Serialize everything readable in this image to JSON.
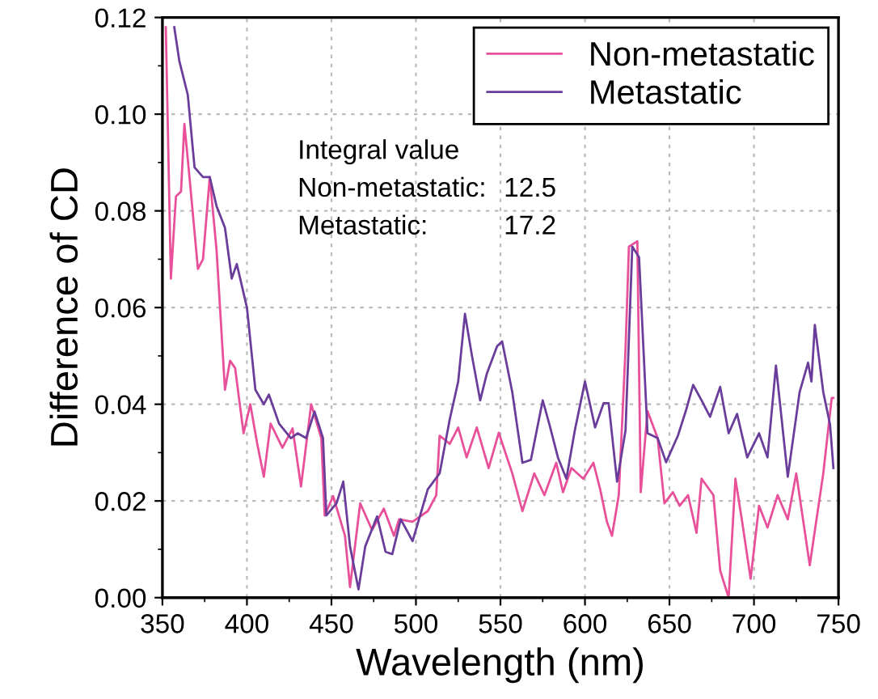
{
  "chart_data": {
    "type": "line",
    "xlabel": "Wavelength (nm)",
    "ylabel": "Difference of CD",
    "xlim": [
      350,
      750
    ],
    "ylim": [
      0,
      0.12
    ],
    "xticks": [
      350,
      400,
      450,
      500,
      550,
      600,
      650,
      700,
      750
    ],
    "yticks": [
      {
        "value": 0,
        "label": "0.00"
      },
      {
        "value": 0.02,
        "label": "0.02"
      },
      {
        "value": 0.04,
        "label": "0.04"
      },
      {
        "value": 0.06,
        "label": "0.06"
      },
      {
        "value": 0.08,
        "label": "0.08"
      },
      {
        "value": 0.1,
        "label": "0.10"
      },
      {
        "value": 0.12,
        "label": "0.12"
      }
    ],
    "grid": true,
    "legend": "top right",
    "line_style": "solid",
    "marker": "none",
    "annotations": [
      "Integral value",
      "Non-metastatic: 12.5",
      "Metastatic: 17.2"
    ],
    "series": [
      {
        "name": "Non-metastatic",
        "color": "#e8509a",
        "x": [
          352,
          355,
          358,
          361,
          363,
          366,
          371,
          374,
          378,
          382,
          387,
          390,
          393,
          398,
          402,
          406,
          410,
          414,
          421,
          427,
          432,
          438,
          444,
          446,
          451,
          458,
          461,
          467,
          474,
          481,
          487,
          490,
          498,
          507,
          512,
          514,
          520,
          525,
          530,
          536,
          543,
          549,
          557,
          563,
          570,
          576,
          583,
          587,
          592,
          599,
          605,
          609,
          613,
          616,
          620,
          624,
          626,
          631,
          633,
          637,
          643,
          647,
          652,
          656,
          661,
          666,
          669,
          676,
          680,
          685,
          689,
          693,
          698,
          703,
          708,
          714,
          720,
          725,
          733,
          741,
          746,
          747
        ],
        "values": [
          0.118,
          0.066,
          0.083,
          0.084,
          0.098,
          0.087,
          0.068,
          0.07,
          0.087,
          0.072,
          0.043,
          0.049,
          0.0475,
          0.034,
          0.04,
          0.032,
          0.025,
          0.036,
          0.031,
          0.035,
          0.023,
          0.04,
          0.033,
          0.017,
          0.021,
          0.0128,
          0.0022,
          0.0195,
          0.014,
          0.0184,
          0.0128,
          0.0162,
          0.0157,
          0.0179,
          0.0212,
          0.0335,
          0.0318,
          0.0352,
          0.029,
          0.0352,
          0.0268,
          0.0341,
          0.0257,
          0.0179,
          0.0257,
          0.0212,
          0.0279,
          0.0218,
          0.0268,
          0.0246,
          0.0279,
          0.0224,
          0.0157,
          0.0128,
          0.0212,
          0.0514,
          0.0726,
          0.0737,
          0.0218,
          0.0386,
          0.033,
          0.0195,
          0.0218,
          0.019,
          0.0212,
          0.0134,
          0.0246,
          0.0212,
          0.0056,
          0.0,
          0.0246,
          0.0157,
          0.0039,
          0.019,
          0.0145,
          0.0212,
          0.0162,
          0.0257,
          0.0067,
          0.0257,
          0.0413,
          0.0413
        ]
      },
      {
        "name": "Metastatic",
        "color": "#6a3d9a",
        "x": [
          357,
          360,
          365,
          369,
          374,
          378,
          382,
          387,
          391,
          394,
          400,
          405,
          410,
          413,
          419,
          426,
          430,
          435,
          440,
          445,
          447,
          453,
          457,
          461,
          466,
          470,
          477,
          482,
          486,
          491,
          498,
          507,
          514,
          520,
          525,
          529,
          533,
          538,
          542,
          548,
          551,
          557,
          563,
          568,
          575,
          579,
          584,
          589,
          594,
          600,
          606,
          611,
          614,
          619,
          624,
          628,
          632,
          637,
          643,
          648,
          655,
          660,
          664,
          669,
          674,
          680,
          685,
          690,
          696,
          703,
          708,
          713,
          720,
          727,
          732,
          734,
          736,
          741,
          745,
          747
        ],
        "values": [
          0.118,
          0.111,
          0.104,
          0.089,
          0.087,
          0.087,
          0.081,
          0.0765,
          0.066,
          0.069,
          0.06,
          0.043,
          0.04,
          0.042,
          0.036,
          0.033,
          0.034,
          0.033,
          0.0385,
          0.033,
          0.017,
          0.0195,
          0.024,
          0.0106,
          0.0017,
          0.0106,
          0.0168,
          0.0095,
          0.009,
          0.0162,
          0.0117,
          0.0224,
          0.0257,
          0.0369,
          0.0447,
          0.0587,
          0.0503,
          0.0408,
          0.0464,
          0.052,
          0.053,
          0.0425,
          0.0279,
          0.0285,
          0.0408,
          0.0358,
          0.029,
          0.0246,
          0.0346,
          0.0447,
          0.0352,
          0.0402,
          0.0402,
          0.024,
          0.0346,
          0.0726,
          0.0704,
          0.034,
          0.033,
          0.028,
          0.0335,
          0.039,
          0.044,
          0.0408,
          0.0374,
          0.0436,
          0.034,
          0.038,
          0.029,
          0.034,
          0.029,
          0.048,
          0.025,
          0.0425,
          0.0486,
          0.0447,
          0.0564,
          0.0425,
          0.0358,
          0.0268
        ]
      }
    ]
  }
}
